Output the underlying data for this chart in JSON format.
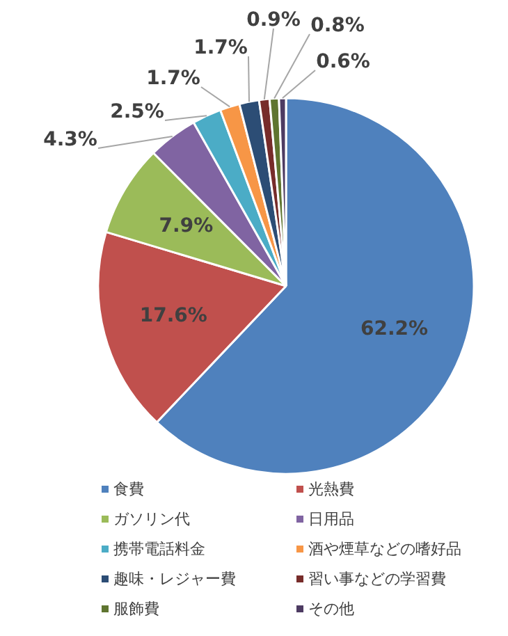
{
  "chart_data": {
    "type": "pie",
    "categories": [
      "食費",
      "光熱費",
      "ガソリン代",
      "日用品",
      "携帯電話料金",
      "酒や煙草などの嗜好品",
      "趣味・レジャー費",
      "習い事などの学習費",
      "服飾費",
      "その他"
    ],
    "values": [
      62.2,
      17.6,
      7.9,
      4.3,
      2.5,
      1.7,
      1.7,
      0.9,
      0.8,
      0.6
    ],
    "colors": [
      "#4f81bd",
      "#c0504d",
      "#9bbb59",
      "#8064a2",
      "#4bacc6",
      "#f79646",
      "#2c4d75",
      "#772c2a",
      "#5f7530",
      "#4d3b62"
    ],
    "value_labels": [
      "62.2%",
      "17.6%",
      "7.9%",
      "4.3%",
      "2.5%",
      "1.7%",
      "1.7%",
      "0.9%",
      "0.8%",
      "0.6%"
    ],
    "legend": "bottom"
  }
}
